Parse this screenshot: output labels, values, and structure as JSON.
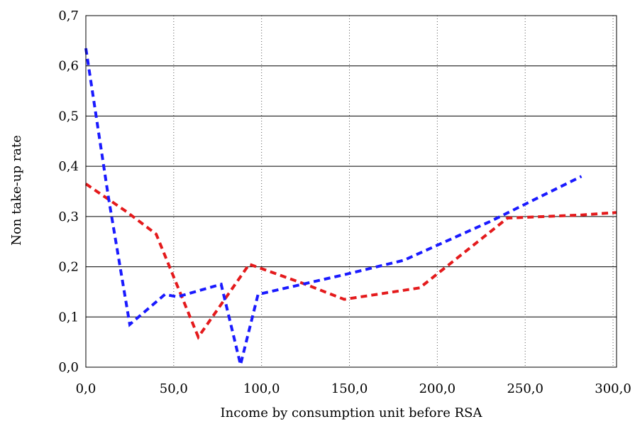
{
  "chart_data": {
    "type": "line",
    "title": "",
    "xlabel": "Income by consumption unit before RSA",
    "ylabel": "Non take-up rate",
    "xlim": [
      0,
      302
    ],
    "ylim": [
      0,
      0.7
    ],
    "x_ticks": [
      {
        "value": 0,
        "label": "0,0"
      },
      {
        "value": 50,
        "label": "50,0"
      },
      {
        "value": 100,
        "label": "100,0"
      },
      {
        "value": 150,
        "label": "150,0"
      },
      {
        "value": 200,
        "label": "200,0"
      },
      {
        "value": 250,
        "label": "250,0"
      },
      {
        "value": 300,
        "label": "300,0"
      }
    ],
    "y_ticks": [
      {
        "value": 0,
        "label": "0,0"
      },
      {
        "value": 0.1,
        "label": "0,1"
      },
      {
        "value": 0.2,
        "label": "0,2"
      },
      {
        "value": 0.3,
        "label": "0,3"
      },
      {
        "value": 0.4,
        "label": "0,4"
      },
      {
        "value": 0.5,
        "label": "0,5"
      },
      {
        "value": 0.6,
        "label": "0,6"
      },
      {
        "value": 0.7,
        "label": "0,7"
      }
    ],
    "grid": {
      "horizontal": "solid",
      "vertical": "dotted"
    },
    "series": [
      {
        "color": "#e41a1c",
        "style": "dashed",
        "x": [
          0,
          23,
          40,
          64,
          93,
          125,
          147,
          190,
          240,
          282,
          302
        ],
        "y": [
          0.365,
          0.31,
          0.265,
          0.06,
          0.205,
          0.165,
          0.135,
          0.158,
          0.297,
          0.303,
          0.308
        ]
      },
      {
        "color": "#1a1aff",
        "style": "dashed",
        "x": [
          0,
          13,
          25,
          45,
          52,
          77,
          88,
          98,
          148,
          181,
          230,
          282
        ],
        "y": [
          0.635,
          0.335,
          0.085,
          0.145,
          0.14,
          0.165,
          0.005,
          0.145,
          0.185,
          0.213,
          0.29,
          0.38
        ]
      }
    ]
  }
}
